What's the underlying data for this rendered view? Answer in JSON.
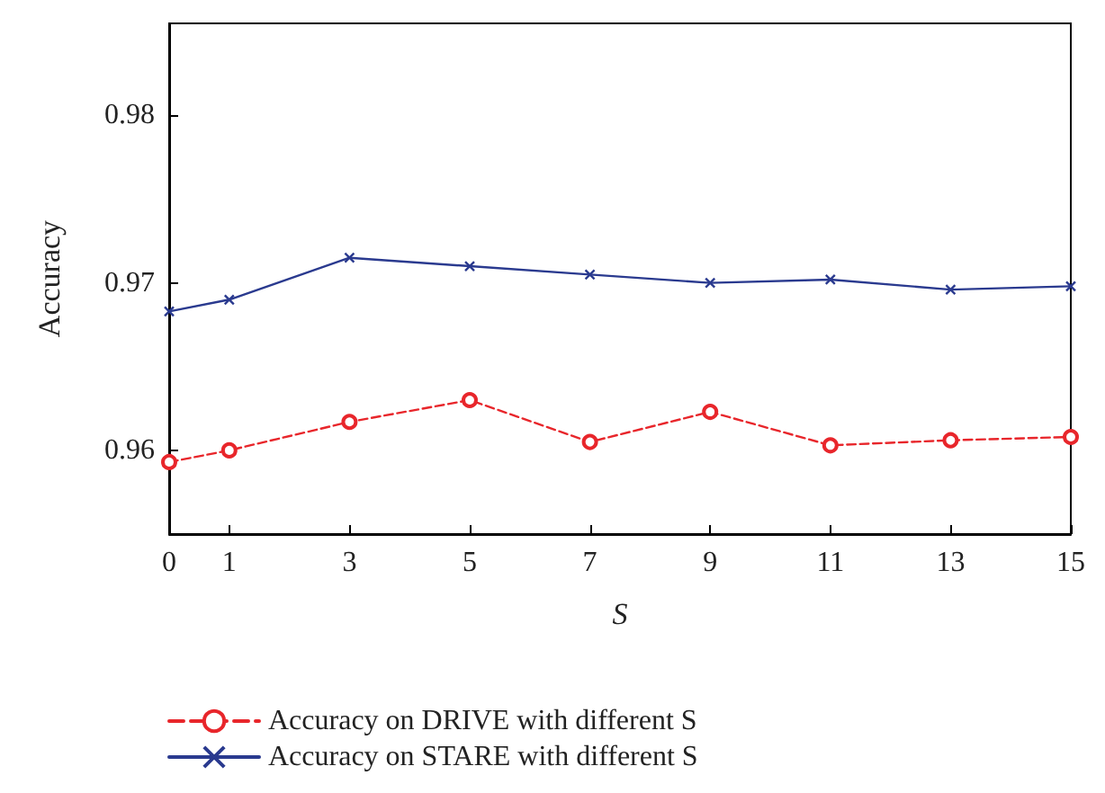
{
  "chart_data": {
    "type": "line",
    "xlabel": "S",
    "ylabel": "Accuracy",
    "x": [
      0,
      1,
      3,
      5,
      7,
      9,
      11,
      13,
      15
    ],
    "series": [
      {
        "name": "Accuracy on DRIVE with different S",
        "color": "#e8262b",
        "line_style": "dashed",
        "marker": "circle",
        "values": [
          0.9593,
          0.96,
          0.9617,
          0.963,
          0.9605,
          0.9623,
          0.9603,
          0.9606,
          0.9608
        ]
      },
      {
        "name": "Accuracy on STARE with different S",
        "color": "#2a3a8f",
        "line_style": "solid",
        "marker": "cross",
        "values": [
          0.9683,
          0.969,
          0.9715,
          0.971,
          0.9705,
          0.97,
          0.9702,
          0.9696,
          0.9698
        ]
      }
    ],
    "xlim": [
      0,
      15
    ],
    "xticks": [
      0,
      1,
      3,
      5,
      7,
      9,
      11,
      13,
      15
    ],
    "ylim": [
      0.955,
      0.9855
    ],
    "yticks": [
      0.96,
      0.97,
      0.98
    ],
    "grid": false,
    "legend": "bottom"
  }
}
